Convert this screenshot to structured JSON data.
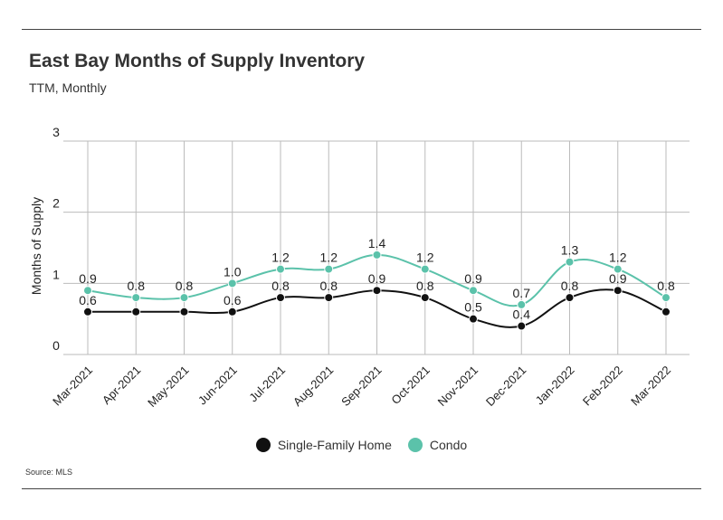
{
  "header": {
    "title": "East Bay Months of Supply Inventory",
    "subtitle": "TTM, Monthly"
  },
  "footer": {
    "source": "Source:  MLS"
  },
  "colors": {
    "single_family": "#111111",
    "condo": "#5bc2aa",
    "grid": "#bbbbbb"
  },
  "chart_data": {
    "type": "line",
    "title": "East Bay Months of Supply Inventory",
    "subtitle": "TTM, Monthly",
    "xlabel": "",
    "ylabel": "Months of Supply",
    "ylim": [
      0,
      3
    ],
    "yticks": [
      0,
      1,
      2,
      3
    ],
    "grid": true,
    "legend_position": "bottom",
    "categories": [
      "Mar-2021",
      "Apr-2021",
      "May-2021",
      "Jun-2021",
      "Jul-2021",
      "Aug-2021",
      "Sep-2021",
      "Oct-2021",
      "Nov-2021",
      "Dec-2021",
      "Jan-2022",
      "Feb-2022",
      "Mar-2022"
    ],
    "series": [
      {
        "name": "Single-Family Home",
        "color": "#111111",
        "values": [
          0.6,
          0.6,
          0.6,
          0.6,
          0.8,
          0.8,
          0.9,
          0.8,
          0.5,
          0.4,
          0.8,
          0.9,
          0.6
        ],
        "labels": [
          "0.6",
          "",
          "",
          "0.6",
          "0.8",
          "0.8",
          "0.9",
          "0.8",
          "0.5",
          "0.4",
          "0.8",
          "0.9",
          ""
        ]
      },
      {
        "name": "Condo",
        "color": "#5bc2aa",
        "values": [
          0.9,
          0.8,
          0.8,
          1.0,
          1.2,
          1.2,
          1.4,
          1.2,
          0.9,
          0.7,
          1.3,
          1.2,
          0.8
        ],
        "labels": [
          "0.9",
          "0.8",
          "0.8",
          "1.0",
          "1.2",
          "1.2",
          "1.4",
          "1.2",
          "0.9",
          "0.7",
          "1.3",
          "1.2",
          "0.8"
        ]
      }
    ]
  }
}
